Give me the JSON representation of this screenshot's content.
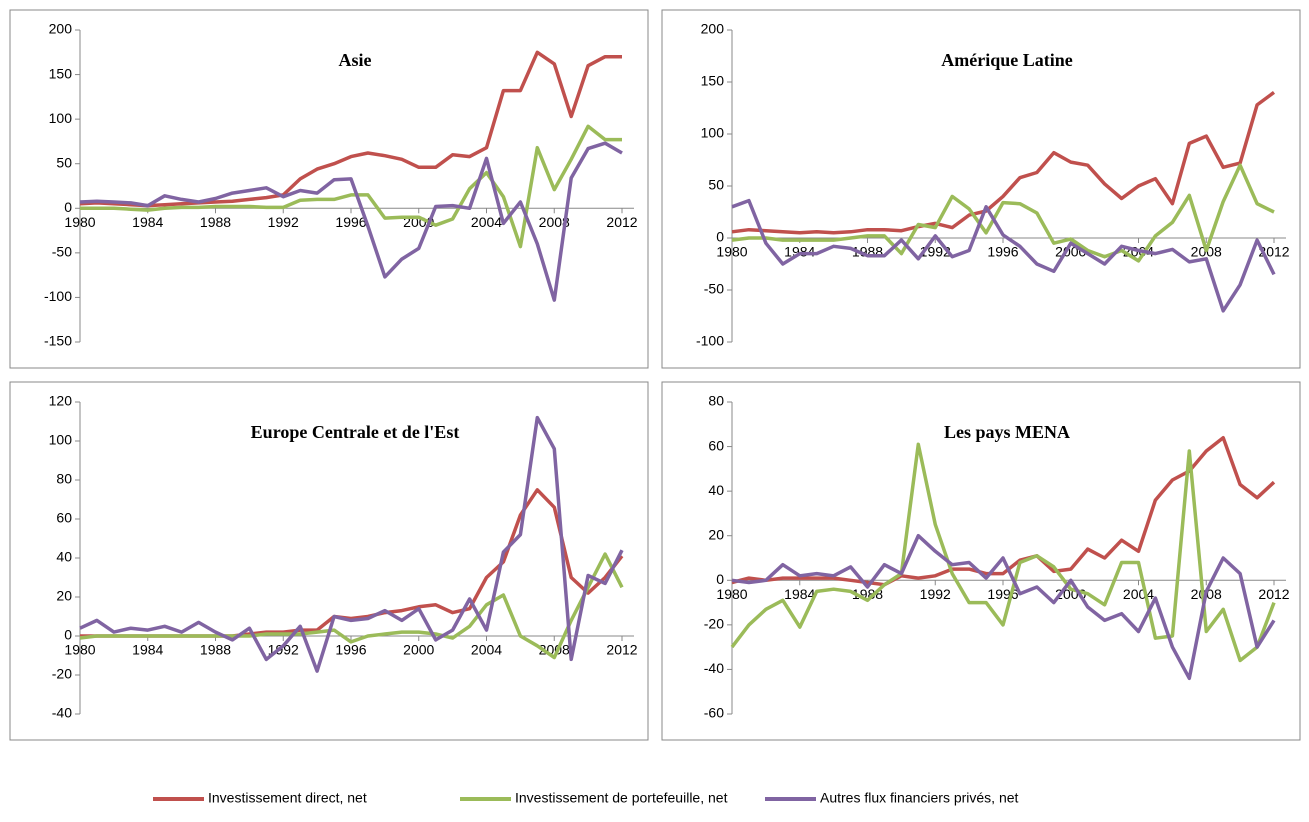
{
  "legend": [
    {
      "name": "Investissement direct, net",
      "color": "#c0504d"
    },
    {
      "name": "Investissement de portefeuille, net",
      "color": "#9bbb59"
    },
    {
      "name": "Autres flux financiers privés, net",
      "color": "#8064a2"
    }
  ],
  "chart_data": [
    {
      "type": "line",
      "title": "Asie",
      "x": [
        1980,
        1981,
        1982,
        1983,
        1984,
        1985,
        1986,
        1987,
        1988,
        1989,
        1990,
        1991,
        1992,
        1993,
        1994,
        1995,
        1996,
        1997,
        1998,
        1999,
        2000,
        2001,
        2002,
        2003,
        2004,
        2005,
        2006,
        2007,
        2008,
        2009,
        2010,
        2011,
        2012
      ],
      "xlim": [
        1980,
        2012
      ],
      "xticks": [
        1980,
        1984,
        1988,
        1992,
        1996,
        2000,
        2004,
        2008,
        2012
      ],
      "ylim": [
        -150,
        200
      ],
      "yticks": [
        -150,
        -100,
        -50,
        0,
        50,
        100,
        150,
        200
      ],
      "series": [
        {
          "values": [
            5,
            6,
            5,
            4,
            3,
            4,
            5,
            6,
            7,
            8,
            10,
            12,
            15,
            33,
            44,
            50,
            58,
            62,
            59,
            55,
            46,
            46,
            60,
            58,
            68,
            132,
            132,
            175,
            162,
            103,
            160,
            170,
            170
          ]
        },
        {
          "values": [
            0,
            0,
            0,
            -1,
            -2,
            0,
            1,
            1,
            2,
            2,
            2,
            1,
            1,
            9,
            10,
            10,
            15,
            15,
            -11,
            -10,
            -10,
            -19,
            -12,
            22,
            40,
            13,
            -43,
            68,
            21,
            55,
            92,
            77,
            77
          ]
        },
        {
          "values": [
            7,
            8,
            7,
            6,
            3,
            14,
            10,
            7,
            11,
            17,
            20,
            23,
            13,
            20,
            17,
            32,
            33,
            -20,
            -77,
            -57,
            -45,
            2,
            3,
            0,
            56,
            -17,
            7,
            -40,
            -103,
            34,
            67,
            73,
            62
          ]
        }
      ]
    },
    {
      "type": "line",
      "title": "Amérique Latine",
      "x": [
        1980,
        1981,
        1982,
        1983,
        1984,
        1985,
        1986,
        1987,
        1988,
        1989,
        1990,
        1991,
        1992,
        1993,
        1994,
        1995,
        1996,
        1997,
        1998,
        1999,
        2000,
        2001,
        2002,
        2003,
        2004,
        2005,
        2006,
        2007,
        2008,
        2009,
        2010,
        2011,
        2012
      ],
      "xlim": [
        1980,
        2012
      ],
      "xticks": [
        1980,
        1984,
        1988,
        1992,
        1996,
        2000,
        2004,
        2008,
        2012
      ],
      "ylim": [
        -100,
        200
      ],
      "yticks": [
        -100,
        -50,
        0,
        50,
        100,
        150,
        200
      ],
      "series": [
        {
          "values": [
            6,
            8,
            7,
            6,
            5,
            6,
            5,
            6,
            8,
            8,
            7,
            11,
            14,
            10,
            22,
            26,
            40,
            58,
            63,
            82,
            73,
            70,
            52,
            38,
            50,
            57,
            33,
            91,
            98,
            68,
            72,
            128,
            140
          ]
        },
        {
          "values": [
            -2,
            0,
            0,
            -2,
            -2,
            -2,
            -2,
            0,
            2,
            2,
            -15,
            13,
            10,
            40,
            28,
            5,
            34,
            33,
            24,
            -5,
            -1,
            -12,
            -18,
            -12,
            -22,
            2,
            15,
            41,
            -12,
            35,
            70,
            33,
            25
          ]
        },
        {
          "values": [
            30,
            36,
            -5,
            -25,
            -15,
            -15,
            -8,
            -10,
            -17,
            -17,
            -2,
            -20,
            2,
            -18,
            -12,
            30,
            3,
            -8,
            -25,
            -32,
            -5,
            -15,
            -25,
            -8,
            -12,
            -15,
            -11,
            -23,
            -20,
            -70,
            -45,
            -2,
            -35
          ]
        }
      ]
    },
    {
      "type": "line",
      "title": "Europe Centrale et de l'Est",
      "x": [
        1980,
        1981,
        1982,
        1983,
        1984,
        1985,
        1986,
        1987,
        1988,
        1989,
        1990,
        1991,
        1992,
        1993,
        1994,
        1995,
        1996,
        1997,
        1998,
        1999,
        2000,
        2001,
        2002,
        2003,
        2004,
        2005,
        2006,
        2007,
        2008,
        2009,
        2010,
        2011,
        2012
      ],
      "xlim": [
        1980,
        2012
      ],
      "xticks": [
        1980,
        1984,
        1988,
        1992,
        1996,
        2000,
        2004,
        2008,
        2012
      ],
      "ylim": [
        -40,
        120
      ],
      "yticks": [
        -40,
        -20,
        0,
        20,
        40,
        60,
        80,
        100,
        120
      ],
      "series": [
        {
          "values": [
            0,
            0,
            0,
            0,
            0,
            0,
            0,
            0,
            0,
            0,
            1,
            2,
            2,
            3,
            3,
            10,
            9,
            10,
            12,
            13,
            15,
            16,
            12,
            14,
            30,
            38,
            62,
            75,
            66,
            30,
            22,
            30,
            41
          ]
        },
        {
          "values": [
            -1,
            0,
            0,
            0,
            0,
            0,
            0,
            0,
            0,
            0,
            0,
            1,
            1,
            1,
            2,
            3,
            -3,
            0,
            1,
            2,
            2,
            1,
            -1,
            5,
            16,
            21,
            0,
            -5,
            -11,
            8,
            25,
            42,
            25
          ]
        },
        {
          "values": [
            4,
            8,
            2,
            4,
            3,
            5,
            2,
            7,
            2,
            -2,
            4,
            -12,
            -5,
            5,
            -18,
            10,
            8,
            9,
            13,
            8,
            14,
            -2,
            3,
            19,
            3,
            43,
            52,
            112,
            96,
            -12,
            31,
            27,
            44
          ]
        }
      ]
    },
    {
      "type": "line",
      "title": "Les pays MENA",
      "x": [
        1980,
        1981,
        1982,
        1983,
        1984,
        1985,
        1986,
        1987,
        1988,
        1989,
        1990,
        1991,
        1992,
        1993,
        1994,
        1995,
        1996,
        1997,
        1998,
        1999,
        2000,
        2001,
        2002,
        2003,
        2004,
        2005,
        2006,
        2007,
        2008,
        2009,
        2010,
        2011,
        2012
      ],
      "xlim": [
        1980,
        2012
      ],
      "xticks": [
        1980,
        1984,
        1988,
        1992,
        1996,
        2000,
        2004,
        2008,
        2012
      ],
      "ylim": [
        -60,
        80
      ],
      "yticks": [
        -60,
        -40,
        -20,
        0,
        20,
        40,
        60,
        80
      ],
      "series": [
        {
          "values": [
            -1,
            1,
            0,
            1,
            1,
            1,
            1,
            0,
            -1,
            -2,
            2,
            1,
            2,
            5,
            5,
            3,
            3,
            9,
            11,
            4,
            5,
            14,
            10,
            18,
            13,
            36,
            45,
            49,
            58,
            64,
            43,
            37,
            44
          ]
        },
        {
          "values": [
            -30,
            -20,
            -13,
            -9,
            -21,
            -5,
            -4,
            -5,
            -9,
            -2,
            3,
            61,
            25,
            3,
            -10,
            -10,
            -20,
            8,
            11,
            6,
            -4,
            -6,
            -11,
            8,
            8,
            -26,
            -25,
            58,
            -23,
            -13,
            -36,
            -30,
            -10
          ]
        },
        {
          "values": [
            0,
            -1,
            0,
            7,
            2,
            3,
            2,
            6,
            -3,
            7,
            3,
            20,
            13,
            7,
            8,
            1,
            10,
            -6,
            -3,
            -10,
            0,
            -12,
            -18,
            -15,
            -23,
            -8,
            -30,
            -44,
            -5,
            10,
            3,
            -30,
            -18
          ]
        }
      ]
    }
  ]
}
